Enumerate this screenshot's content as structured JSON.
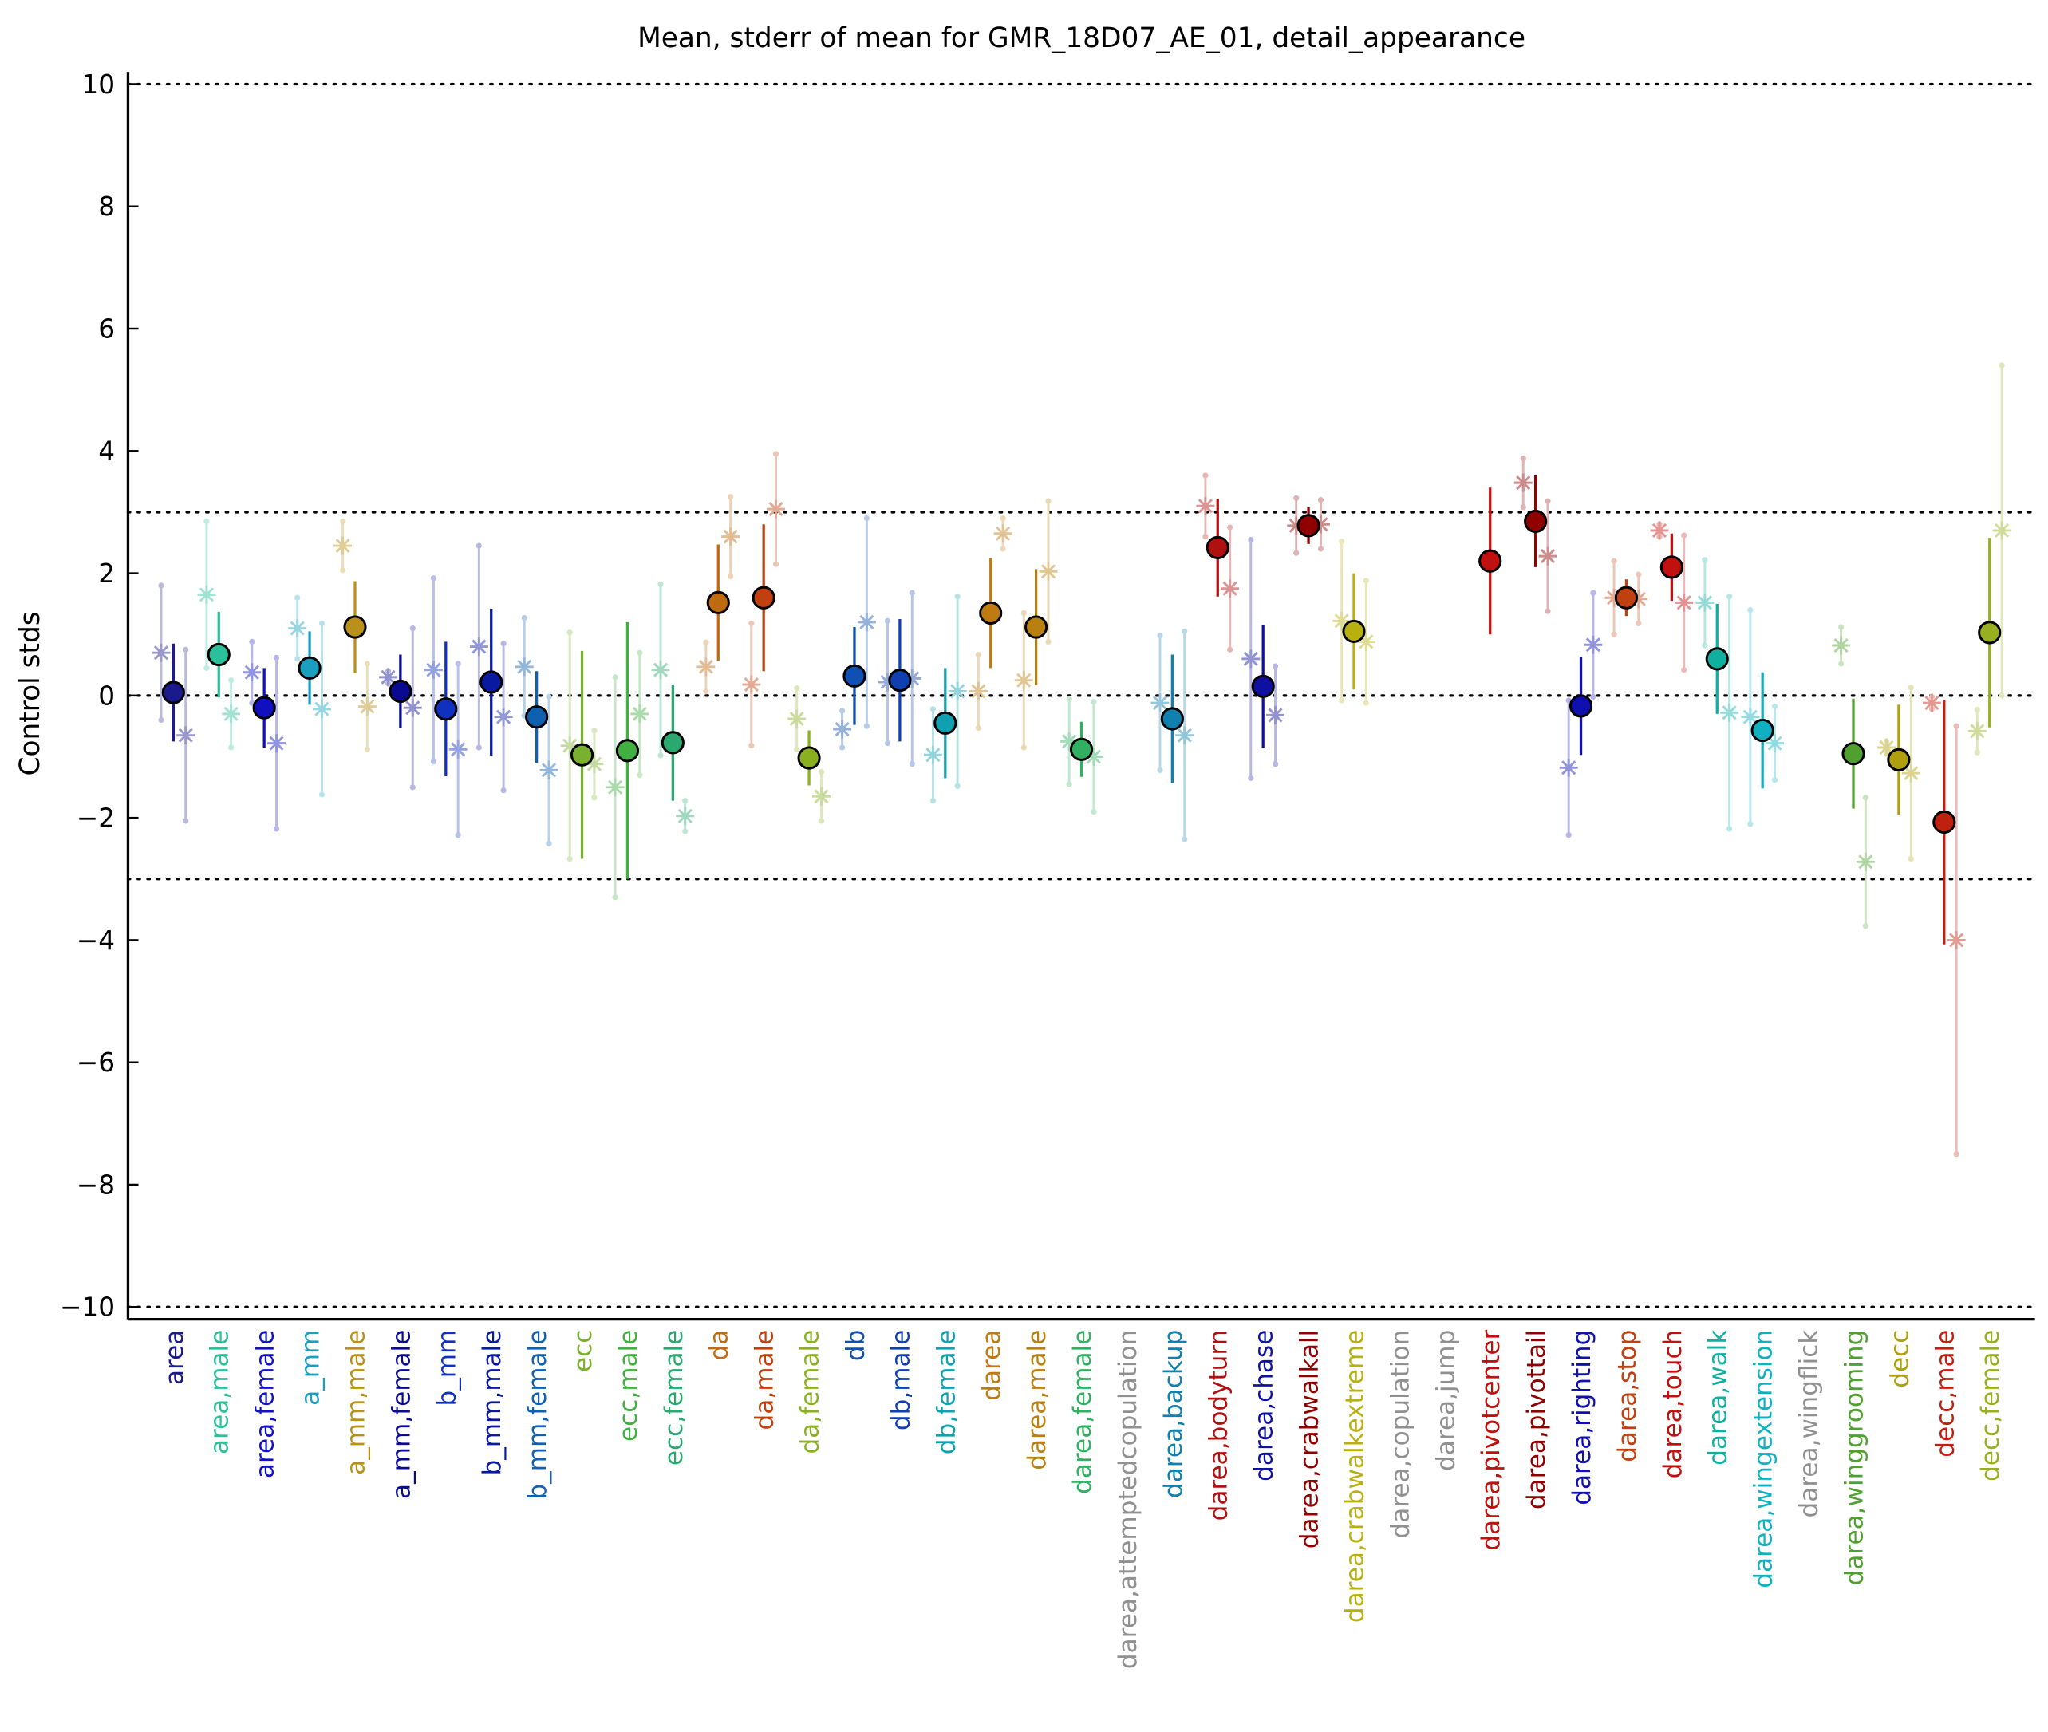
{
  "chart_data": {
    "type": "errorbar",
    "title": "Mean, stderr of mean for GMR_18D07_AE_01, detail_appearance",
    "y_label": "Control stds",
    "categories": [
      "area",
      "area,male",
      "area,female",
      "a_mm",
      "a_mm,male",
      "a_mm,female",
      "b_mm",
      "b_mm,male",
      "b_mm,female",
      "ecc",
      "ecc,male",
      "ecc,female",
      "da",
      "da,male",
      "da,female",
      "db",
      "db,male",
      "db,female",
      "darea",
      "darea,male",
      "darea,female",
      "darea,attemptedcopulation",
      "darea,backup",
      "darea,bodyturn",
      "darea,chase",
      "darea,crabwalkall",
      "darea,crabwalkextreme",
      "darea,copulation",
      "darea,jump",
      "darea,pivotcenter",
      "darea,pivottail",
      "darea,righting",
      "darea,stop",
      "darea,touch",
      "darea,walk",
      "darea,wingextension",
      "darea,wingflick",
      "darea,winggrooming",
      "decc",
      "decc,male",
      "decc,female"
    ],
    "colors": [
      "#1a1a8c",
      "#2bbf9a",
      "#1010c0",
      "#1a9fbf",
      "#b8901a",
      "#0a0a90",
      "#1030c0",
      "#0a1aa0",
      "#1060b0",
      "#7ab030",
      "#40b040",
      "#2aa870",
      "#c06a10",
      "#c04010",
      "#8ab020",
      "#1050b0",
      "#1040b0",
      "#10a0b0",
      "#c07a10",
      "#b88010",
      "#30b060",
      "#909090",
      "#1080b0",
      "#b01010",
      "#1010a0",
      "#900000",
      "#b8b010",
      "#909090",
      "#909090",
      "#c01010",
      "#900000",
      "#1010b0",
      "#c04010",
      "#c01010",
      "#10b0a0",
      "#10b0c0",
      "#909090",
      "#50a030",
      "#b0a010",
      "#c02010",
      "#98b020"
    ],
    "values": [
      0.05,
      0.67,
      -0.2,
      0.45,
      1.12,
      0.07,
      -0.22,
      0.22,
      -0.35,
      -0.97,
      -0.9,
      -0.77,
      1.52,
      1.6,
      -1.02,
      0.32,
      0.25,
      -0.45,
      1.35,
      1.12,
      -0.88,
      null,
      -0.38,
      2.42,
      0.15,
      2.78,
      1.05,
      null,
      null,
      2.2,
      2.85,
      -0.17,
      1.6,
      2.1,
      0.6,
      -0.57,
      null,
      -0.95,
      -1.05,
      -2.07,
      1.03
    ],
    "errors": [
      0.8,
      0.7,
      0.65,
      0.6,
      0.75,
      0.6,
      1.1,
      1.2,
      0.75,
      1.7,
      2.1,
      0.95,
      0.95,
      1.2,
      0.45,
      0.8,
      1.0,
      0.9,
      0.9,
      0.95,
      0.45,
      null,
      1.05,
      0.8,
      1.0,
      0.3,
      0.95,
      null,
      null,
      1.2,
      0.75,
      0.8,
      0.3,
      0.55,
      0.9,
      0.95,
      null,
      0.9,
      0.9,
      2.0,
      1.55
    ],
    "left_values": [
      0.7,
      1.65,
      0.38,
      1.1,
      2.45,
      0.3,
      0.42,
      0.8,
      0.47,
      -0.82,
      -1.5,
      0.42,
      0.47,
      0.18,
      -0.38,
      -0.55,
      0.22,
      -0.97,
      0.07,
      0.25,
      -0.75,
      null,
      -0.12,
      3.1,
      0.6,
      2.78,
      1.22,
      null,
      null,
      null,
      3.48,
      -1.18,
      1.6,
      2.7,
      1.52,
      -0.35,
      null,
      0.82,
      -0.85,
      -0.12,
      -0.58
    ],
    "left_errors": [
      1.1,
      1.2,
      0.5,
      0.5,
      0.4,
      0.1,
      1.5,
      1.65,
      0.8,
      1.85,
      1.8,
      1.4,
      0.4,
      1.0,
      0.5,
      0.3,
      1.0,
      0.75,
      0.6,
      1.1,
      0.7,
      null,
      1.1,
      0.5,
      1.95,
      0.45,
      1.3,
      null,
      null,
      null,
      0.4,
      1.1,
      0.6,
      0.1,
      0.7,
      1.75,
      null,
      0.3,
      0.1,
      0.1,
      0.35
    ],
    "right_values": [
      -0.65,
      -0.3,
      -0.78,
      -0.22,
      -0.18,
      -0.2,
      -0.88,
      -0.35,
      -1.22,
      -1.12,
      -0.3,
      -1.97,
      2.6,
      3.05,
      -1.65,
      1.2,
      0.28,
      0.07,
      2.65,
      2.03,
      -1.0,
      null,
      -0.65,
      1.75,
      -0.32,
      2.8,
      0.88,
      null,
      null,
      null,
      2.28,
      0.83,
      1.58,
      1.52,
      -0.28,
      -0.78,
      null,
      -2.72,
      -1.27,
      -4.0,
      2.7
    ],
    "right_errors": [
      1.4,
      0.55,
      1.4,
      1.4,
      0.7,
      1.3,
      1.4,
      1.2,
      1.2,
      0.55,
      1.0,
      0.25,
      0.65,
      0.9,
      0.4,
      1.7,
      1.4,
      1.55,
      0.25,
      1.15,
      0.9,
      null,
      1.7,
      1.0,
      0.8,
      0.4,
      1.0,
      null,
      null,
      null,
      0.9,
      0.85,
      0.4,
      1.1,
      1.9,
      0.6,
      null,
      1.05,
      1.4,
      3.5,
      2.7
    ],
    "xlim": [
      0,
      42
    ],
    "ylim": [
      -10.2,
      10.2
    ],
    "yticks": [
      -10,
      -8,
      -6,
      -4,
      -2,
      0,
      2,
      4,
      6,
      8,
      10
    ],
    "reference_lines": [
      -10,
      -3,
      0,
      3,
      10
    ]
  }
}
